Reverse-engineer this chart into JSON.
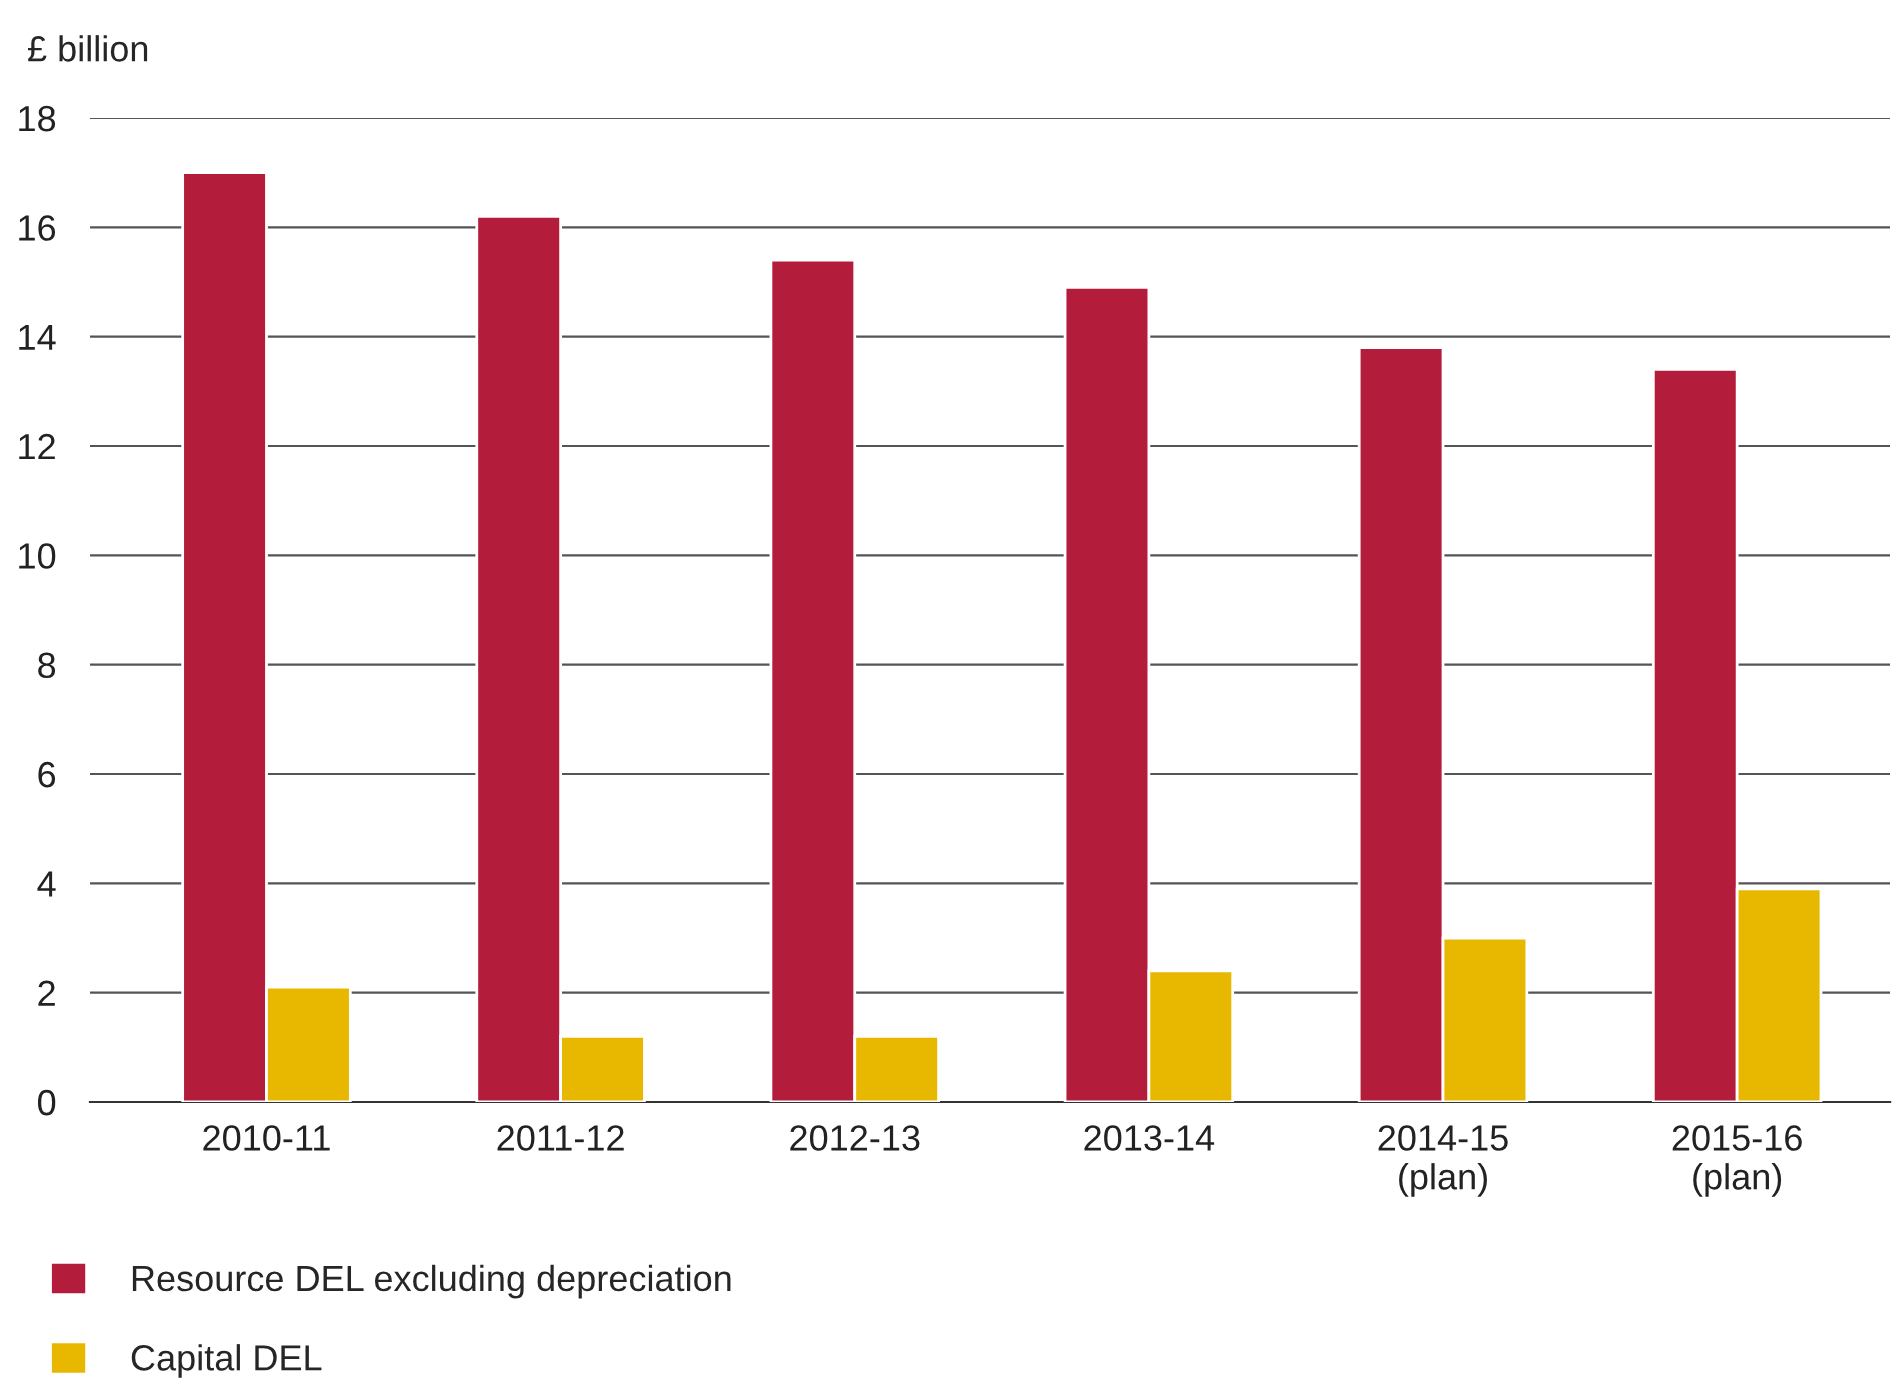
{
  "chart_data": {
    "type": "bar",
    "ylabel": "£ billion",
    "categories": [
      "2010-11",
      "2011-12",
      "2012-13",
      "2013-14",
      "2014-15\n(plan)",
      "2015-16\n(plan)"
    ],
    "series": [
      {
        "name": "Resource DEL excluding depreciation",
        "color": "#b41c3c",
        "values": [
          17.0,
          16.2,
          15.4,
          14.9,
          13.8,
          13.4
        ]
      },
      {
        "name": "Capital DEL",
        "color": "#e8b800",
        "values": [
          2.1,
          1.2,
          1.2,
          2.4,
          3.0,
          3.9
        ]
      }
    ],
    "ylim": [
      0,
      18
    ],
    "yticks": [
      0,
      2,
      4,
      6,
      8,
      10,
      12,
      14,
      16,
      18
    ],
    "grid": "y",
    "legend": "bottom left"
  }
}
